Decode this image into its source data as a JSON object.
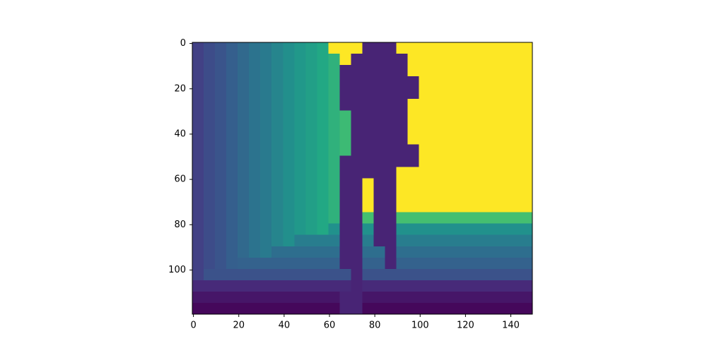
{
  "chart_data": {
    "type": "heatmap",
    "colormap": "viridis",
    "x": [
      2,
      7,
      12,
      17,
      22,
      27,
      32,
      37,
      42,
      47,
      52,
      57,
      62,
      67,
      72,
      77,
      82,
      87,
      92,
      97,
      102,
      107,
      112,
      117,
      122,
      127,
      132,
      137,
      142,
      147
    ],
    "y": [
      2,
      7,
      12,
      17,
      22,
      27,
      32,
      37,
      42,
      47,
      52,
      57,
      62,
      67,
      72,
      77,
      82,
      87,
      92,
      97,
      102,
      107,
      112,
      117
    ],
    "z": [
      [
        0.19,
        0.23,
        0.26,
        0.3,
        0.34,
        0.38,
        0.41,
        0.45,
        0.49,
        0.53,
        0.56,
        0.6,
        1,
        1,
        1,
        0.1,
        0.1,
        0.1,
        1,
        1,
        1,
        1,
        1,
        1,
        1,
        1,
        1,
        1,
        1,
        1
      ],
      [
        0.19,
        0.23,
        0.26,
        0.3,
        0.34,
        0.38,
        0.41,
        0.45,
        0.49,
        0.53,
        0.56,
        0.6,
        0.64,
        1,
        0.1,
        0.1,
        0.1,
        0.1,
        0.1,
        1,
        1,
        1,
        1,
        1,
        1,
        1,
        1,
        1,
        1,
        1
      ],
      [
        0.19,
        0.23,
        0.26,
        0.3,
        0.34,
        0.38,
        0.41,
        0.45,
        0.49,
        0.53,
        0.56,
        0.6,
        0.64,
        0.1,
        0.1,
        0.1,
        0.1,
        0.1,
        0.1,
        1,
        1,
        1,
        1,
        1,
        1,
        1,
        1,
        1,
        1,
        1
      ],
      [
        0.19,
        0.23,
        0.26,
        0.3,
        0.34,
        0.38,
        0.41,
        0.45,
        0.49,
        0.53,
        0.56,
        0.6,
        0.64,
        0.1,
        0.1,
        0.1,
        0.1,
        0.1,
        0.1,
        0.1,
        1,
        1,
        1,
        1,
        1,
        1,
        1,
        1,
        1,
        1
      ],
      [
        0.19,
        0.23,
        0.26,
        0.3,
        0.34,
        0.38,
        0.41,
        0.45,
        0.49,
        0.53,
        0.56,
        0.6,
        0.64,
        0.1,
        0.1,
        0.1,
        0.1,
        0.1,
        0.1,
        0.1,
        1,
        1,
        1,
        1,
        1,
        1,
        1,
        1,
        1,
        1
      ],
      [
        0.19,
        0.23,
        0.26,
        0.3,
        0.34,
        0.38,
        0.41,
        0.45,
        0.49,
        0.53,
        0.56,
        0.6,
        0.64,
        0.1,
        0.1,
        0.1,
        0.1,
        0.1,
        0.1,
        1,
        1,
        1,
        1,
        1,
        1,
        1,
        1,
        1,
        1,
        1
      ],
      [
        0.19,
        0.23,
        0.26,
        0.3,
        0.34,
        0.38,
        0.41,
        0.45,
        0.49,
        0.53,
        0.56,
        0.6,
        0.64,
        0.68,
        0.1,
        0.1,
        0.1,
        0.1,
        0.1,
        1,
        1,
        1,
        1,
        1,
        1,
        1,
        1,
        1,
        1,
        1
      ],
      [
        0.19,
        0.23,
        0.26,
        0.3,
        0.34,
        0.38,
        0.41,
        0.45,
        0.49,
        0.53,
        0.56,
        0.6,
        0.64,
        0.68,
        0.1,
        0.1,
        0.1,
        0.1,
        0.1,
        1,
        1,
        1,
        1,
        1,
        1,
        1,
        1,
        1,
        1,
        1
      ],
      [
        0.19,
        0.23,
        0.26,
        0.3,
        0.34,
        0.38,
        0.41,
        0.45,
        0.49,
        0.53,
        0.56,
        0.6,
        0.64,
        0.68,
        0.1,
        0.1,
        0.1,
        0.1,
        0.1,
        1,
        1,
        1,
        1,
        1,
        1,
        1,
        1,
        1,
        1,
        1
      ],
      [
        0.19,
        0.23,
        0.26,
        0.3,
        0.34,
        0.38,
        0.41,
        0.45,
        0.49,
        0.53,
        0.56,
        0.6,
        0.64,
        0.68,
        0.1,
        0.1,
        0.1,
        0.1,
        0.1,
        0.1,
        1,
        1,
        1,
        1,
        1,
        1,
        1,
        1,
        1,
        1
      ],
      [
        0.19,
        0.23,
        0.26,
        0.3,
        0.34,
        0.38,
        0.41,
        0.45,
        0.49,
        0.53,
        0.56,
        0.6,
        0.64,
        0.1,
        0.1,
        0.1,
        0.1,
        0.1,
        0.1,
        0.1,
        1,
        1,
        1,
        1,
        1,
        1,
        1,
        1,
        1,
        1
      ],
      [
        0.19,
        0.23,
        0.26,
        0.3,
        0.34,
        0.38,
        0.41,
        0.45,
        0.49,
        0.53,
        0.56,
        0.6,
        0.64,
        0.1,
        0.1,
        0.1,
        0.1,
        0.1,
        1,
        1,
        1,
        1,
        1,
        1,
        1,
        1,
        1,
        1,
        1,
        1
      ],
      [
        0.19,
        0.23,
        0.26,
        0.3,
        0.34,
        0.38,
        0.41,
        0.45,
        0.49,
        0.53,
        0.56,
        0.6,
        0.64,
        0.1,
        0.1,
        1,
        0.1,
        0.1,
        1,
        1,
        1,
        1,
        1,
        1,
        1,
        1,
        1,
        1,
        1,
        1
      ],
      [
        0.19,
        0.23,
        0.26,
        0.3,
        0.34,
        0.38,
        0.41,
        0.45,
        0.49,
        0.53,
        0.56,
        0.6,
        0.64,
        0.1,
        0.1,
        1,
        0.1,
        0.1,
        1,
        1,
        1,
        1,
        1,
        1,
        1,
        1,
        1,
        1,
        1,
        1
      ],
      [
        0.19,
        0.23,
        0.26,
        0.3,
        0.34,
        0.38,
        0.41,
        0.45,
        0.49,
        0.53,
        0.56,
        0.6,
        0.64,
        0.1,
        0.1,
        1,
        0.1,
        0.1,
        1,
        1,
        1,
        1,
        1,
        1,
        1,
        1,
        1,
        1,
        1,
        1
      ],
      [
        0.19,
        0.23,
        0.26,
        0.3,
        0.34,
        0.38,
        0.41,
        0.45,
        0.49,
        0.53,
        0.56,
        0.6,
        0.64,
        0.1,
        0.1,
        0.7,
        0.1,
        0.1,
        0.7,
        0.7,
        0.7,
        0.7,
        0.7,
        0.7,
        0.7,
        0.7,
        0.7,
        0.7,
        0.7,
        0.7
      ],
      [
        0.19,
        0.23,
        0.26,
        0.3,
        0.34,
        0.38,
        0.41,
        0.45,
        0.49,
        0.53,
        0.56,
        0.6,
        0.5,
        0.1,
        0.1,
        0.5,
        0.1,
        0.1,
        0.5,
        0.5,
        0.5,
        0.5,
        0.5,
        0.5,
        0.5,
        0.5,
        0.5,
        0.5,
        0.5,
        0.5
      ],
      [
        0.19,
        0.23,
        0.26,
        0.3,
        0.34,
        0.38,
        0.41,
        0.45,
        0.49,
        0.42,
        0.42,
        0.42,
        0.42,
        0.1,
        0.1,
        0.42,
        0.1,
        0.1,
        0.42,
        0.42,
        0.42,
        0.42,
        0.42,
        0.42,
        0.42,
        0.42,
        0.42,
        0.42,
        0.42,
        0.42
      ],
      [
        0.19,
        0.23,
        0.26,
        0.3,
        0.34,
        0.38,
        0.41,
        0.36,
        0.36,
        0.36,
        0.36,
        0.36,
        0.36,
        0.1,
        0.1,
        0.36,
        0.36,
        0.1,
        0.36,
        0.36,
        0.36,
        0.36,
        0.36,
        0.36,
        0.36,
        0.36,
        0.36,
        0.36,
        0.36,
        0.36
      ],
      [
        0.19,
        0.23,
        0.26,
        0.3,
        0.31,
        0.31,
        0.31,
        0.31,
        0.31,
        0.31,
        0.31,
        0.31,
        0.31,
        0.1,
        0.1,
        0.31,
        0.31,
        0.1,
        0.31,
        0.31,
        0.31,
        0.31,
        0.31,
        0.31,
        0.31,
        0.31,
        0.31,
        0.31,
        0.31,
        0.31
      ],
      [
        0.19,
        0.25,
        0.25,
        0.25,
        0.25,
        0.25,
        0.25,
        0.25,
        0.25,
        0.25,
        0.25,
        0.25,
        0.25,
        0.25,
        0.1,
        0.25,
        0.25,
        0.25,
        0.25,
        0.25,
        0.25,
        0.25,
        0.25,
        0.25,
        0.25,
        0.25,
        0.25,
        0.25,
        0.25,
        0.25
      ],
      [
        0.12,
        0.12,
        0.12,
        0.12,
        0.12,
        0.12,
        0.12,
        0.12,
        0.12,
        0.12,
        0.12,
        0.12,
        0.12,
        0.12,
        0.1,
        0.12,
        0.12,
        0.12,
        0.12,
        0.12,
        0.12,
        0.12,
        0.12,
        0.12,
        0.12,
        0.12,
        0.12,
        0.12,
        0.12,
        0.12
      ],
      [
        0.06,
        0.06,
        0.06,
        0.06,
        0.06,
        0.06,
        0.06,
        0.06,
        0.06,
        0.06,
        0.06,
        0.06,
        0.06,
        0.1,
        0.1,
        0.06,
        0.06,
        0.06,
        0.06,
        0.06,
        0.06,
        0.06,
        0.06,
        0.06,
        0.06,
        0.06,
        0.06,
        0.06,
        0.06,
        0.06
      ],
      [
        0.02,
        0.02,
        0.02,
        0.02,
        0.02,
        0.02,
        0.02,
        0.02,
        0.02,
        0.02,
        0.02,
        0.02,
        0.02,
        0.1,
        0.1,
        0.02,
        0.02,
        0.02,
        0.02,
        0.02,
        0.02,
        0.02,
        0.02,
        0.02,
        0.02,
        0.02,
        0.02,
        0.02,
        0.02,
        0.02
      ]
    ],
    "xlim": [
      -0.5,
      149.5
    ],
    "xticks": [
      0,
      20,
      40,
      60,
      80,
      100,
      120,
      140
    ],
    "ylim": [
      119.5,
      -0.5
    ],
    "yticks": [
      0,
      20,
      40,
      60,
      80,
      100
    ]
  }
}
